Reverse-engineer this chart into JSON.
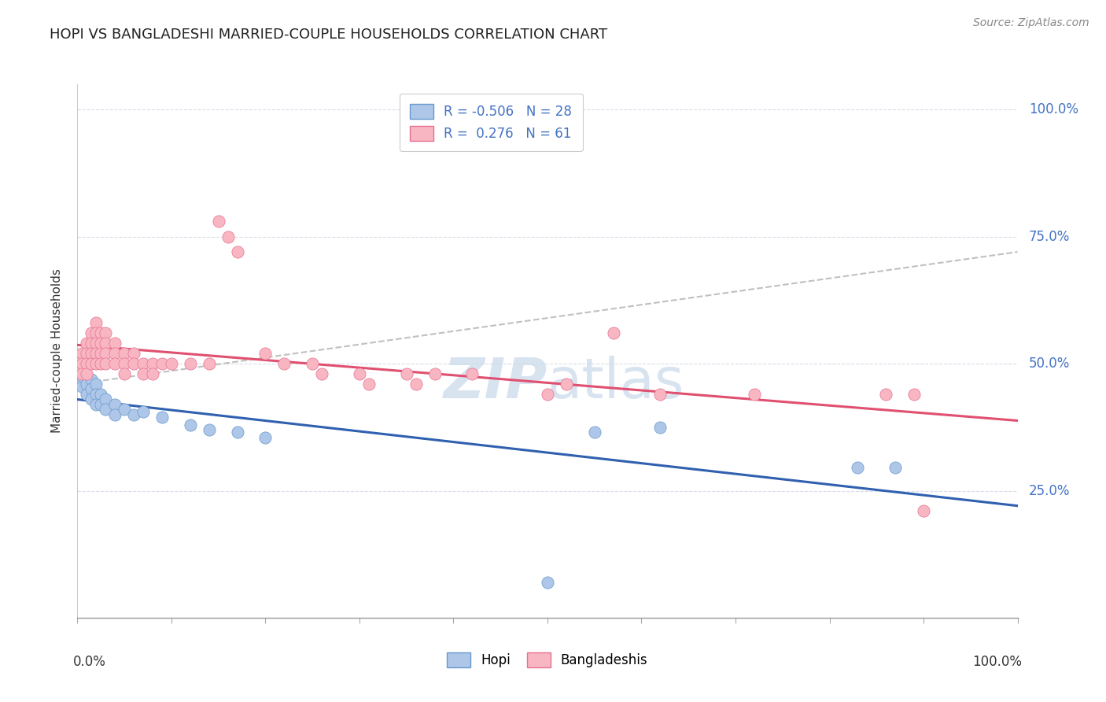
{
  "title": "HOPI VS BANGLADESHI MARRIED-COUPLE HOUSEHOLDS CORRELATION CHART",
  "source": "Source: ZipAtlas.com",
  "ylabel": "Married-couple Households",
  "y_ticks": [
    "25.0%",
    "50.0%",
    "75.0%",
    "100.0%"
  ],
  "y_tick_vals": [
    0.25,
    0.5,
    0.75,
    1.0
  ],
  "hopi_color": "#aec6e8",
  "bangladeshi_color": "#f7b6c2",
  "hopi_edge_color": "#6699cc",
  "bangladeshi_edge_color": "#e87090",
  "hopi_line_color": "#3060b0",
  "bangladeshi_line_color": "#e05070",
  "dash_line_color": "#c0c0c0",
  "background_color": "#ffffff",
  "grid_color": "#d8dce8",
  "watermark_color": "#c8d8ea",
  "hopi_points": [
    [
      0.005,
      0.455
    ],
    [
      0.005,
      0.475
    ],
    [
      0.01,
      0.46
    ],
    [
      0.01,
      0.44
    ],
    [
      0.015,
      0.47
    ],
    [
      0.015,
      0.45
    ],
    [
      0.015,
      0.43
    ],
    [
      0.02,
      0.46
    ],
    [
      0.02,
      0.44
    ],
    [
      0.02,
      0.42
    ],
    [
      0.025,
      0.44
    ],
    [
      0.025,
      0.42
    ],
    [
      0.03,
      0.43
    ],
    [
      0.03,
      0.41
    ],
    [
      0.04,
      0.42
    ],
    [
      0.04,
      0.4
    ],
    [
      0.05,
      0.41
    ],
    [
      0.06,
      0.4
    ],
    [
      0.07,
      0.405
    ],
    [
      0.09,
      0.395
    ],
    [
      0.12,
      0.38
    ],
    [
      0.14,
      0.37
    ],
    [
      0.17,
      0.365
    ],
    [
      0.2,
      0.355
    ],
    [
      0.55,
      0.365
    ],
    [
      0.62,
      0.375
    ],
    [
      0.83,
      0.295
    ],
    [
      0.87,
      0.295
    ],
    [
      0.5,
      0.07
    ]
  ],
  "bangladeshi_points": [
    [
      0.005,
      0.52
    ],
    [
      0.005,
      0.5
    ],
    [
      0.005,
      0.48
    ],
    [
      0.01,
      0.54
    ],
    [
      0.01,
      0.52
    ],
    [
      0.01,
      0.5
    ],
    [
      0.01,
      0.48
    ],
    [
      0.015,
      0.56
    ],
    [
      0.015,
      0.54
    ],
    [
      0.015,
      0.52
    ],
    [
      0.015,
      0.5
    ],
    [
      0.02,
      0.58
    ],
    [
      0.02,
      0.56
    ],
    [
      0.02,
      0.54
    ],
    [
      0.02,
      0.52
    ],
    [
      0.02,
      0.5
    ],
    [
      0.025,
      0.56
    ],
    [
      0.025,
      0.54
    ],
    [
      0.025,
      0.52
    ],
    [
      0.025,
      0.5
    ],
    [
      0.03,
      0.56
    ],
    [
      0.03,
      0.54
    ],
    [
      0.03,
      0.52
    ],
    [
      0.03,
      0.5
    ],
    [
      0.04,
      0.54
    ],
    [
      0.04,
      0.52
    ],
    [
      0.04,
      0.5
    ],
    [
      0.05,
      0.52
    ],
    [
      0.05,
      0.5
    ],
    [
      0.05,
      0.48
    ],
    [
      0.06,
      0.52
    ],
    [
      0.06,
      0.5
    ],
    [
      0.07,
      0.5
    ],
    [
      0.07,
      0.48
    ],
    [
      0.08,
      0.5
    ],
    [
      0.08,
      0.48
    ],
    [
      0.09,
      0.5
    ],
    [
      0.1,
      0.5
    ],
    [
      0.12,
      0.5
    ],
    [
      0.14,
      0.5
    ],
    [
      0.15,
      0.78
    ],
    [
      0.16,
      0.75
    ],
    [
      0.17,
      0.72
    ],
    [
      0.2,
      0.52
    ],
    [
      0.22,
      0.5
    ],
    [
      0.25,
      0.5
    ],
    [
      0.26,
      0.48
    ],
    [
      0.3,
      0.48
    ],
    [
      0.31,
      0.46
    ],
    [
      0.35,
      0.48
    ],
    [
      0.36,
      0.46
    ],
    [
      0.38,
      0.48
    ],
    [
      0.42,
      0.48
    ],
    [
      0.5,
      0.44
    ],
    [
      0.52,
      0.46
    ],
    [
      0.57,
      0.56
    ],
    [
      0.62,
      0.44
    ],
    [
      0.72,
      0.44
    ],
    [
      0.86,
      0.44
    ],
    [
      0.89,
      0.44
    ],
    [
      0.9,
      0.21
    ]
  ]
}
